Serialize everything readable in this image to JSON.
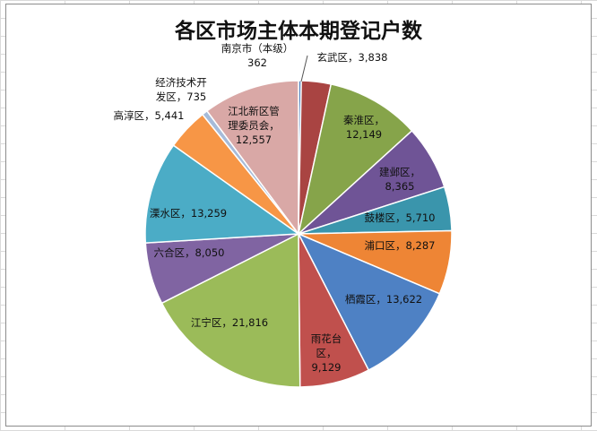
{
  "chart_data": {
    "type": "pie",
    "title": "各区市场主体本期登记户数",
    "slices": [
      {
        "lines": [
          "南京市（本级）",
          "362"
        ],
        "value": 362,
        "color": "#4f81bd"
      },
      {
        "lines": [
          "玄武区，3,838"
        ],
        "value": 3838,
        "color": "#a94442"
      },
      {
        "lines": [
          "秦淮区，",
          "12,149"
        ],
        "value": 12149,
        "color": "#86a44a"
      },
      {
        "lines": [
          "建邺区，",
          "8,365"
        ],
        "value": 8365,
        "color": "#6f5496"
      },
      {
        "lines": [
          "鼓楼区，5,710"
        ],
        "value": 5710,
        "color": "#3a95ac"
      },
      {
        "lines": [
          "浦口区，8,287"
        ],
        "value": 8287,
        "color": "#ee8535"
      },
      {
        "lines": [
          "栖霞区，13,622"
        ],
        "value": 13622,
        "color": "#4e81c4"
      },
      {
        "lines": [
          "雨花台",
          "区，",
          "9,129"
        ],
        "value": 9129,
        "color": "#c0504d"
      },
      {
        "lines": [
          "江宁区，21,816"
        ],
        "value": 21816,
        "color": "#9bbb59"
      },
      {
        "lines": [
          "六合区，8,050"
        ],
        "value": 8050,
        "color": "#8064a2"
      },
      {
        "lines": [
          "溧水区，13,259"
        ],
        "value": 13259,
        "color": "#4bacc6"
      },
      {
        "lines": [
          "高淳区，5,441"
        ],
        "value": 5441,
        "color": "#f79646"
      },
      {
        "lines": [
          "经济技术开",
          "发区，735"
        ],
        "value": 735,
        "color": "#a6bbd9"
      },
      {
        "lines": [
          "江北新区管",
          "理委员会，",
          "12,557"
        ],
        "value": 12557,
        "color": "#d9a8a6"
      }
    ]
  }
}
